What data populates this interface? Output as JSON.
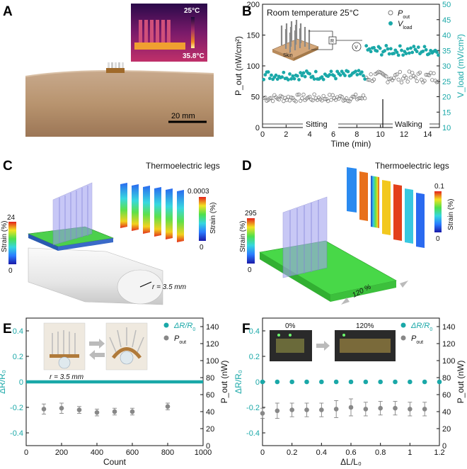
{
  "panels": {
    "A": {
      "label": "A",
      "thermal": {
        "top_temp": "25°C",
        "bottom_temp": "35.8°C"
      },
      "scale_bar": "20 mm"
    },
    "B": {
      "label": "B",
      "title": "Room temperature 25°C",
      "phase_sitting": "Sitting",
      "phase_walking": "Walking",
      "inset": {
        "r_label": "R",
        "v_label": "V",
        "skin_label": "Skin"
      }
    },
    "C": {
      "label": "C",
      "legs_title": "Thermoelectric legs",
      "scale_main": {
        "max": "24",
        "min": "0",
        "title": "Strain (%)"
      },
      "scale_legs": {
        "max": "0.0003",
        "min": "0",
        "title": "Strain (%)"
      },
      "radius": "r = 3.5 mm"
    },
    "D": {
      "label": "D",
      "legs_title": "Thermoelectric legs",
      "scale_main": {
        "max": "295",
        "min": "0",
        "title": "Strain (%)"
      },
      "scale_legs": {
        "max": "0.1",
        "min": "0",
        "title": "Strain (%)"
      },
      "stretch": "120 %"
    },
    "E": {
      "label": "E",
      "inset_radius": "r = 3.5 mm"
    },
    "F": {
      "label": "F",
      "inset_left": "0%",
      "inset_right": "120%"
    }
  },
  "colors": {
    "teal": "#1aa8a8",
    "gray": "#888888",
    "dark_gray": "#555555"
  },
  "chart_data": [
    {
      "type": "scatter",
      "panel": "B",
      "xlabel": "Time (min)",
      "ylabel": "P_out (nW/cm²)",
      "y2label": "V_load (mV/cm²)",
      "xlim": [
        0,
        15
      ],
      "ylim": [
        0,
        200
      ],
      "y2lim": [
        10,
        50
      ],
      "xticks": [
        0,
        2,
        4,
        6,
        8,
        10,
        12,
        14
      ],
      "yticks": [
        0,
        50,
        100,
        150,
        200
      ],
      "y2ticks": [
        10,
        15,
        20,
        25,
        30,
        35,
        40,
        45,
        50
      ],
      "phase_boundary_x": 8.7,
      "series": [
        {
          "name": "P_out",
          "marker": "open-circle",
          "axis": "left",
          "segments": [
            {
              "x_range": [
                0,
                8.7
              ],
              "mean": 48,
              "amplitude": 6
            },
            {
              "x_range": [
                8.7,
                15
              ],
              "mean": 82,
              "amplitude": 9
            }
          ]
        },
        {
          "name": "V_load",
          "marker": "filled-circle",
          "axis": "right",
          "segments": [
            {
              "x_range": [
                0,
                8.7
              ],
              "mean": 27,
              "amplitude": 1.5
            },
            {
              "x_range": [
                8.7,
                15
              ],
              "mean": 35,
              "amplitude": 1.6
            }
          ]
        }
      ]
    },
    {
      "type": "scatter",
      "panel": "E",
      "xlabel": "Count",
      "ylabel": "ΔR/R₀",
      "y2label": "P_out (nW)",
      "xlim": [
        0,
        1000
      ],
      "ylim": [
        -0.5,
        0.5
      ],
      "y2lim": [
        0,
        150
      ],
      "xticks": [
        0,
        200,
        400,
        600,
        800,
        1000
      ],
      "yticks": [
        -0.4,
        -0.2,
        0.0,
        0.2,
        0.4
      ],
      "y2ticks": [
        0,
        20,
        40,
        60,
        80,
        100,
        120,
        140
      ],
      "series": [
        {
          "name": "ΔR/R₀",
          "axis": "left",
          "x_range": [
            0,
            1000
          ],
          "value": 0.0
        },
        {
          "name": "P_out",
          "axis": "right",
          "x": [
            100,
            200,
            300,
            400,
            500,
            600,
            800
          ],
          "y": [
            43,
            44,
            42,
            39,
            40,
            40,
            46
          ],
          "err": [
            6,
            6,
            4,
            4,
            4,
            4,
            4
          ]
        }
      ]
    },
    {
      "type": "scatter",
      "panel": "F",
      "xlabel": "ΔL/L₀",
      "ylabel": "ΔR/R₀",
      "y2label": "P_out (nW)",
      "xlim": [
        0,
        1.2
      ],
      "ylim": [
        -0.5,
        0.5
      ],
      "y2lim": [
        0,
        150
      ],
      "xticks": [
        0.0,
        0.2,
        0.4,
        0.6,
        0.8,
        1.0,
        1.2
      ],
      "yticks": [
        -0.4,
        -0.2,
        0.0,
        0.2,
        0.4
      ],
      "y2ticks": [
        0,
        20,
        40,
        60,
        80,
        100,
        120,
        140
      ],
      "series": [
        {
          "name": "ΔR/R₀",
          "axis": "left",
          "x": [
            0,
            0.1,
            0.2,
            0.3,
            0.4,
            0.5,
            0.6,
            0.7,
            0.8,
            0.9,
            1.0,
            1.1,
            1.2
          ],
          "y": [
            0,
            0,
            0,
            0,
            0,
            0,
            0,
            0,
            0,
            0,
            0,
            0,
            0
          ]
        },
        {
          "name": "P_out",
          "axis": "right",
          "x": [
            0,
            0.1,
            0.2,
            0.3,
            0.4,
            0.5,
            0.6,
            0.7,
            0.8,
            0.9,
            1.0,
            1.1
          ],
          "y": [
            38,
            41,
            42,
            42,
            42,
            43,
            45,
            43,
            44,
            44,
            43,
            43
          ],
          "err": [
            6,
            9,
            8,
            8,
            8,
            10,
            10,
            8,
            8,
            8,
            8,
            8
          ]
        }
      ]
    }
  ]
}
